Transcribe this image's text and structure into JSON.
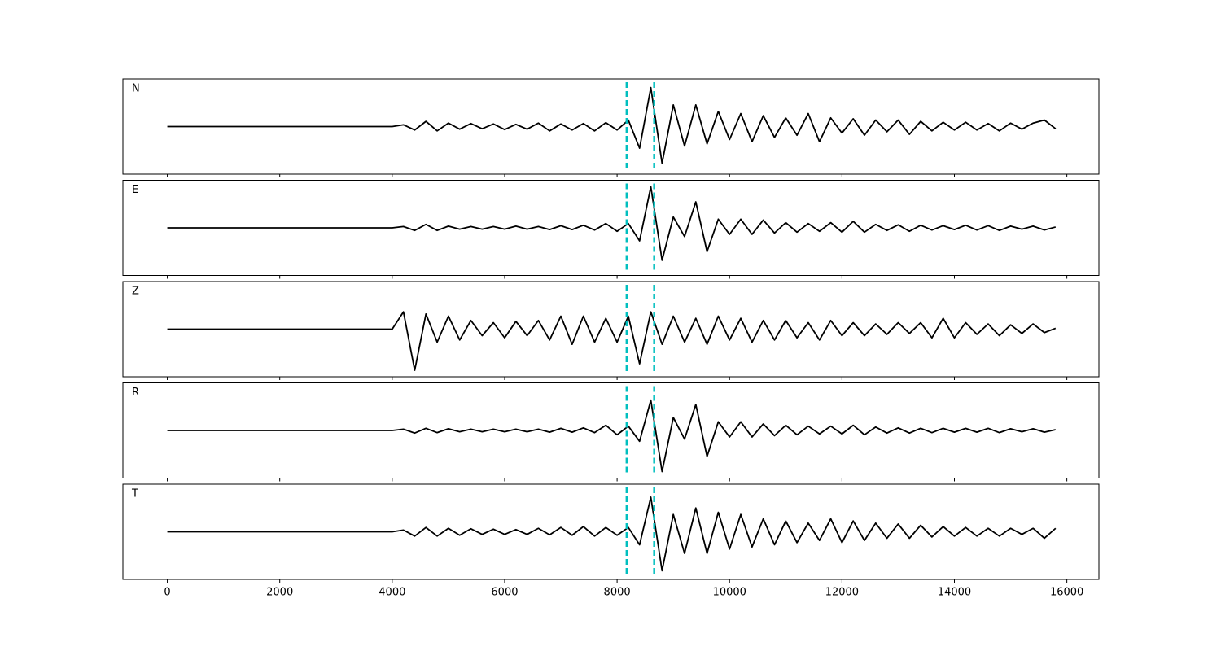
{
  "chart_data": {
    "type": "line",
    "subplots": true,
    "x": [
      0,
      200,
      400,
      600,
      800,
      1000,
      1200,
      1400,
      1600,
      1800,
      2000,
      2200,
      2400,
      2600,
      2800,
      3000,
      3200,
      3400,
      3600,
      3800,
      4000,
      4200,
      4400,
      4600,
      4800,
      5000,
      5200,
      5400,
      5600,
      5800,
      6000,
      6200,
      6400,
      6600,
      6800,
      7000,
      7200,
      7400,
      7600,
      7800,
      8000,
      8200,
      8400,
      8600,
      8800,
      9000,
      9200,
      9400,
      9600,
      9800,
      10000,
      10200,
      10400,
      10600,
      10800,
      11000,
      11200,
      11400,
      11600,
      11800,
      12000,
      12200,
      12400,
      12600,
      12800,
      13000,
      13200,
      13400,
      13600,
      13800,
      14000,
      14200,
      14400,
      14600,
      14800,
      15000,
      15200,
      15400,
      15600,
      15800
    ],
    "xlim": [
      -790,
      16570
    ],
    "xticks": [
      0,
      2000,
      4000,
      6000,
      8000,
      10000,
      12000,
      14000,
      16000
    ],
    "ylim": [
      -1.1,
      1.1
    ],
    "vlines": [
      8170,
      8660
    ],
    "vline_color": "#00bfbf",
    "series": [
      {
        "name": "N",
        "color": "#000000",
        "values": [
          0,
          0,
          0,
          0,
          0,
          0,
          0,
          0,
          0,
          0,
          0,
          0,
          0,
          0,
          0,
          0,
          0,
          0,
          0,
          0,
          0,
          0.04,
          -0.08,
          0.12,
          -0.1,
          0.08,
          -0.06,
          0.07,
          -0.05,
          0.06,
          -0.07,
          0.05,
          -0.06,
          0.08,
          -0.1,
          0.06,
          -0.08,
          0.07,
          -0.1,
          0.09,
          -0.08,
          0.15,
          -0.5,
          0.9,
          -0.85,
          0.5,
          -0.45,
          0.5,
          -0.4,
          0.35,
          -0.3,
          0.3,
          -0.35,
          0.25,
          -0.25,
          0.2,
          -0.2,
          0.3,
          -0.35,
          0.2,
          -0.15,
          0.18,
          -0.2,
          0.15,
          -0.12,
          0.15,
          -0.18,
          0.12,
          -0.1,
          0.1,
          -0.08,
          0.1,
          -0.08,
          0.07,
          -0.1,
          0.08,
          -0.06,
          0.08,
          0.15,
          -0.05
        ]
      },
      {
        "name": "E",
        "color": "#000000",
        "values": [
          0,
          0,
          0,
          0,
          0,
          0,
          0,
          0,
          0,
          0,
          0,
          0,
          0,
          0,
          0,
          0,
          0,
          0,
          0,
          0,
          0,
          0.03,
          -0.06,
          0.08,
          -0.06,
          0.04,
          -0.03,
          0.03,
          -0.03,
          0.03,
          -0.03,
          0.04,
          -0.03,
          0.03,
          -0.04,
          0.05,
          -0.04,
          0.06,
          -0.05,
          0.1,
          -0.08,
          0.1,
          -0.3,
          0.95,
          -0.75,
          0.25,
          -0.2,
          0.6,
          -0.55,
          0.2,
          -0.15,
          0.2,
          -0.15,
          0.18,
          -0.12,
          0.12,
          -0.1,
          0.1,
          -0.08,
          0.12,
          -0.1,
          0.15,
          -0.1,
          0.08,
          -0.06,
          0.07,
          -0.08,
          0.06,
          -0.05,
          0.05,
          -0.04,
          0.06,
          -0.05,
          0.05,
          -0.06,
          0.04,
          -0.03,
          0.04,
          -0.05,
          0.02
        ]
      },
      {
        "name": "Z",
        "color": "#000000",
        "values": [
          0,
          0,
          0,
          0,
          0,
          0,
          0,
          0,
          0,
          0,
          0,
          0,
          0,
          0,
          0,
          0,
          0,
          0,
          0,
          0,
          0,
          0.4,
          -0.95,
          0.35,
          -0.3,
          0.3,
          -0.25,
          0.2,
          -0.15,
          0.15,
          -0.2,
          0.18,
          -0.15,
          0.2,
          -0.25,
          0.3,
          -0.35,
          0.3,
          -0.3,
          0.25,
          -0.3,
          0.3,
          -0.8,
          0.4,
          -0.35,
          0.3,
          -0.3,
          0.25,
          -0.35,
          0.3,
          -0.25,
          0.25,
          -0.3,
          0.2,
          -0.25,
          0.2,
          -0.2,
          0.15,
          -0.25,
          0.2,
          -0.15,
          0.15,
          -0.15,
          0.12,
          -0.12,
          0.15,
          -0.1,
          0.15,
          -0.2,
          0.25,
          -0.2,
          0.15,
          -0.12,
          0.12,
          -0.15,
          0.1,
          -0.1,
          0.12,
          -0.08,
          0.02
        ]
      },
      {
        "name": "R",
        "color": "#000000",
        "values": [
          0,
          0,
          0,
          0,
          0,
          0,
          0,
          0,
          0,
          0,
          0,
          0,
          0,
          0,
          0,
          0,
          0,
          0,
          0,
          0,
          0,
          0.03,
          -0.06,
          0.05,
          -0.05,
          0.04,
          -0.03,
          0.03,
          -0.03,
          0.03,
          -0.03,
          0.03,
          -0.03,
          0.03,
          -0.04,
          0.05,
          -0.04,
          0.06,
          -0.05,
          0.12,
          -0.1,
          0.1,
          -0.25,
          0.7,
          -0.95,
          0.3,
          -0.2,
          0.6,
          -0.6,
          0.2,
          -0.15,
          0.2,
          -0.15,
          0.15,
          -0.12,
          0.12,
          -0.1,
          0.1,
          -0.08,
          0.1,
          -0.08,
          0.12,
          -0.1,
          0.08,
          -0.06,
          0.06,
          -0.06,
          0.05,
          -0.05,
          0.05,
          -0.04,
          0.05,
          -0.04,
          0.05,
          -0.05,
          0.04,
          -0.03,
          0.04,
          -0.04,
          0.02
        ]
      },
      {
        "name": "T",
        "color": "#000000",
        "values": [
          0,
          0,
          0,
          0,
          0,
          0,
          0,
          0,
          0,
          0,
          0,
          0,
          0,
          0,
          0,
          0,
          0,
          0,
          0,
          0,
          0,
          0.04,
          -0.1,
          0.1,
          -0.1,
          0.08,
          -0.08,
          0.07,
          -0.06,
          0.06,
          -0.06,
          0.05,
          -0.06,
          0.08,
          -0.07,
          0.1,
          -0.08,
          0.12,
          -0.1,
          0.1,
          -0.08,
          0.1,
          -0.3,
          0.8,
          -0.9,
          0.4,
          -0.5,
          0.55,
          -0.5,
          0.45,
          -0.4,
          0.4,
          -0.35,
          0.3,
          -0.3,
          0.25,
          -0.25,
          0.2,
          -0.2,
          0.3,
          -0.25,
          0.25,
          -0.2,
          0.2,
          -0.15,
          0.18,
          -0.15,
          0.15,
          -0.12,
          0.12,
          -0.1,
          0.1,
          -0.1,
          0.08,
          -0.1,
          0.08,
          -0.06,
          0.08,
          -0.15,
          0.08
        ]
      }
    ]
  }
}
